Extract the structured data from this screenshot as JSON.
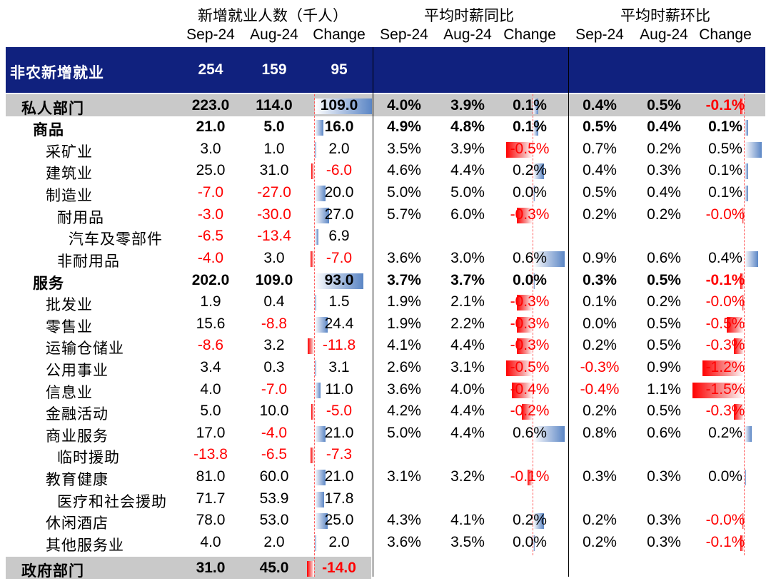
{
  "headers": {
    "group1": "新增就业人数（千人）",
    "group2": "平均时薪同比",
    "group3": "平均时薪环比",
    "columns": [
      "Sep-24",
      "Aug-24",
      "Change",
      "Sep-24",
      "Aug-24",
      "Change",
      "Sep-24",
      "Aug-24",
      "Change"
    ]
  },
  "rows": [
    {
      "label": "非农新增就业",
      "indent": 0,
      "style": "dark",
      "cells": [
        "254",
        "159",
        "95",
        "",
        "",
        "",
        "",
        "",
        ""
      ]
    },
    {
      "label": "私人部门",
      "indent": 1,
      "style": "grey",
      "cells": [
        "223.0",
        "114.0",
        "109.0",
        "4.0%",
        "3.9%",
        "0.1%",
        "0.4%",
        "0.5%",
        "-0.1%"
      ]
    },
    {
      "label": "商品",
      "indent": 2,
      "style": "bold",
      "cells": [
        "21.0",
        "5.0",
        "16.0",
        "4.9%",
        "4.8%",
        "0.1%",
        "0.5%",
        "0.4%",
        "0.1%"
      ]
    },
    {
      "label": "采矿业",
      "indent": 3,
      "style": "",
      "cells": [
        "3.0",
        "1.0",
        "2.0",
        "3.5%",
        "3.9%",
        "-0.5%",
        "0.7%",
        "0.2%",
        "0.5%"
      ]
    },
    {
      "label": "建筑业",
      "indent": 3,
      "style": "",
      "cells": [
        "25.0",
        "31.0",
        "-6.0",
        "4.6%",
        "4.4%",
        "0.2%",
        "0.4%",
        "0.3%",
        "0.1%"
      ]
    },
    {
      "label": "制造业",
      "indent": 3,
      "style": "",
      "cells": [
        "-7.0",
        "-27.0",
        "20.0",
        "5.0%",
        "5.0%",
        "0.0%",
        "0.5%",
        "0.4%",
        "0.1%"
      ]
    },
    {
      "label": "耐用品",
      "indent": 4,
      "style": "",
      "cells": [
        "-3.0",
        "-30.0",
        "27.0",
        "5.7%",
        "6.0%",
        "-0.3%",
        "0.2%",
        "0.2%",
        "-0.0%"
      ]
    },
    {
      "label": "汽车及零部件",
      "indent": 5,
      "style": "",
      "cells": [
        "-6.5",
        "-13.4",
        "6.9",
        "",
        "",
        "",
        "",
        "",
        ""
      ]
    },
    {
      "label": "非耐用品",
      "indent": 4,
      "style": "",
      "cells": [
        "-4.0",
        "3.0",
        "-7.0",
        "3.6%",
        "3.0%",
        "0.6%",
        "0.9%",
        "0.6%",
        "0.4%"
      ]
    },
    {
      "label": "服务",
      "indent": 2,
      "style": "bold",
      "cells": [
        "202.0",
        "109.0",
        "93.0",
        "3.7%",
        "3.7%",
        "0.0%",
        "0.3%",
        "0.5%",
        "-0.1%"
      ]
    },
    {
      "label": "批发业",
      "indent": 3,
      "style": "",
      "cells": [
        "1.9",
        "0.4",
        "1.5",
        "1.9%",
        "2.1%",
        "-0.3%",
        "0.1%",
        "0.2%",
        "-0.0%"
      ]
    },
    {
      "label": "零售业",
      "indent": 3,
      "style": "",
      "cells": [
        "15.6",
        "-8.8",
        "24.4",
        "1.9%",
        "2.2%",
        "-0.3%",
        "0.0%",
        "0.5%",
        "-0.5%"
      ]
    },
    {
      "label": "运输仓储业",
      "indent": 3,
      "style": "",
      "cells": [
        "-8.6",
        "3.2",
        "-11.8",
        "4.1%",
        "4.4%",
        "-0.3%",
        "0.2%",
        "0.5%",
        "-0.3%"
      ]
    },
    {
      "label": "公用事业",
      "indent": 3,
      "style": "",
      "cells": [
        "3.4",
        "0.3",
        "3.1",
        "2.6%",
        "3.1%",
        "-0.5%",
        "-0.3%",
        "0.9%",
        "-1.2%"
      ]
    },
    {
      "label": "信息业",
      "indent": 3,
      "style": "",
      "cells": [
        "4.0",
        "-7.0",
        "11.0",
        "3.6%",
        "4.0%",
        "-0.4%",
        "-0.4%",
        "1.1%",
        "-1.5%"
      ]
    },
    {
      "label": "金融活动",
      "indent": 3,
      "style": "",
      "cells": [
        "5.0",
        "10.0",
        "-5.0",
        "4.2%",
        "4.4%",
        "-0.2%",
        "0.2%",
        "0.5%",
        "-0.3%"
      ]
    },
    {
      "label": "商业服务",
      "indent": 3,
      "style": "",
      "cells": [
        "17.0",
        "-4.0",
        "21.0",
        "5.0%",
        "4.4%",
        "0.6%",
        "0.8%",
        "0.6%",
        "0.2%"
      ]
    },
    {
      "label": "临时援助",
      "indent": 4,
      "style": "",
      "cells": [
        "-13.8",
        "-6.5",
        "-7.3",
        "",
        "",
        "",
        "",
        "",
        ""
      ]
    },
    {
      "label": "教育健康",
      "indent": 3,
      "style": "",
      "cells": [
        "81.0",
        "60.0",
        "21.0",
        "3.1%",
        "3.2%",
        "-0.1%",
        "0.3%",
        "0.3%",
        "0.0%"
      ]
    },
    {
      "label": "医疗和社会援助",
      "indent": 4,
      "style": "",
      "cells": [
        "71.7",
        "53.9",
        "17.8",
        "",
        "",
        "",
        "",
        "",
        ""
      ]
    },
    {
      "label": "休闲酒店",
      "indent": 3,
      "style": "",
      "cells": [
        "78.0",
        "53.0",
        "25.0",
        "4.3%",
        "4.1%",
        "0.2%",
        "0.2%",
        "0.3%",
        "-0.0%"
      ]
    },
    {
      "label": "其他服务业",
      "indent": 3,
      "style": "",
      "cells": [
        "4.0",
        "2.0",
        "2.0",
        "3.6%",
        "3.5%",
        "0.0%",
        "0.2%",
        "0.3%",
        "-0.1%"
      ]
    },
    {
      "label": "政府部门",
      "indent": 1,
      "style": "grey",
      "cells": [
        "31.0",
        "45.0",
        "-14.0",
        "",
        "",
        "",
        "",
        "",
        ""
      ]
    }
  ],
  "bar_scale": {
    "change1_max": 109.0,
    "change2_max": 0.6,
    "change3_max": 1.5
  },
  "colors": {
    "header_band": "#10217e",
    "grey_band": "#c9c9c9",
    "negative": "#ff0000",
    "positive_bar": "#5b86c5",
    "negative_bar": "#ff0000"
  }
}
